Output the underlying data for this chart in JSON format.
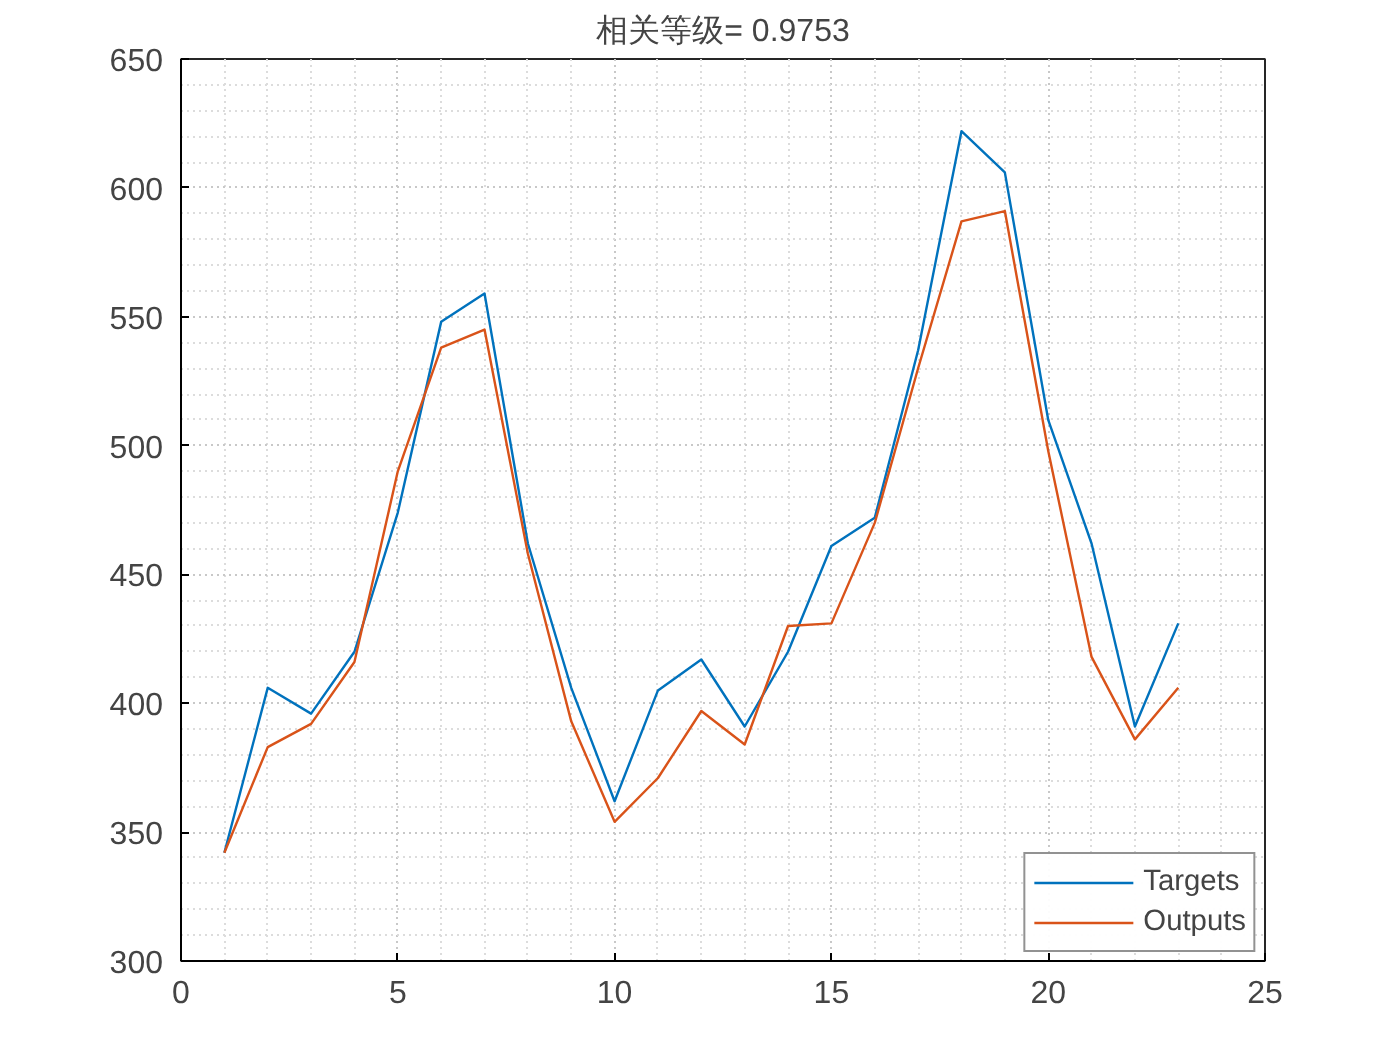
{
  "chart_data": {
    "type": "line",
    "title": "相关等级= 0.9753",
    "x": [
      1,
      2,
      3,
      4,
      5,
      6,
      7,
      8,
      9,
      10,
      11,
      12,
      13,
      14,
      15,
      16,
      17,
      18,
      19,
      20,
      21,
      22,
      23
    ],
    "series": [
      {
        "name": "Targets",
        "color": "#0072bd",
        "values": [
          342,
          406,
          396,
          420,
          474,
          548,
          559,
          462,
          406,
          362,
          405,
          417,
          391,
          420,
          461,
          472,
          537,
          622,
          606,
          510,
          462,
          391,
          431
        ]
      },
      {
        "name": "Outputs",
        "color": "#d95319",
        "values": [
          342,
          383,
          392,
          416,
          490,
          538,
          545,
          458,
          393,
          354,
          371,
          397,
          384,
          430,
          431,
          470,
          530,
          587,
          591,
          498,
          418,
          386,
          406
        ]
      }
    ],
    "xlim": [
      0,
      25
    ],
    "xticks": [
      0,
      5,
      10,
      15,
      20,
      25
    ],
    "ylim": [
      300,
      650
    ],
    "yticks": [
      300,
      350,
      400,
      450,
      500,
      550,
      600,
      650
    ],
    "grid": true,
    "legend": "bottom right"
  }
}
